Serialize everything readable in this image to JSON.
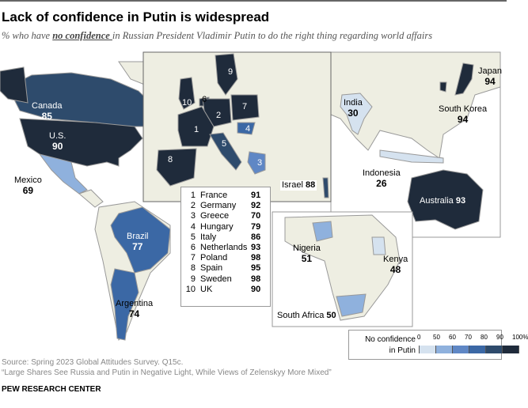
{
  "title": "Lack of confidence in Putin is widespread",
  "subtitle": {
    "prefix": "% who have ",
    "emphasis": "no confidence ",
    "suffix": "in Russian President Vladimir Putin to do the right thing regarding world affairs"
  },
  "colors": {
    "land": "#eeeee2",
    "border": "#999",
    "bin_0_50": "#d5e2ef",
    "bin_50_60": "#8fb1dd",
    "bin_60_70": "#5f87c5",
    "bin_70_80": "#3b68a5",
    "bin_80_90": "#2e4b6c",
    "bin_90_100": "#1f2b3b"
  },
  "countries": {
    "canada": {
      "name": "Canada",
      "value": "85"
    },
    "us": {
      "name": "U.S.",
      "value": "90"
    },
    "mexico": {
      "name": "Mexico",
      "value": "69"
    },
    "brazil": {
      "name": "Brazil",
      "value": "77"
    },
    "argentina": {
      "name": "Argentina",
      "value": "74"
    },
    "israel": {
      "name": "Israel",
      "value": "88"
    },
    "india": {
      "name": "India",
      "value": "30"
    },
    "japan": {
      "name": "Japan",
      "value": "94"
    },
    "south_korea": {
      "name": "South Korea",
      "value": "94"
    },
    "indonesia": {
      "name": "Indonesia",
      "value": "26"
    },
    "australia": {
      "name": "Australia",
      "value": "93"
    },
    "nigeria": {
      "name": "Nigeria",
      "value": "51"
    },
    "kenya": {
      "name": "Kenya",
      "value": "48"
    },
    "south_africa": {
      "name": "South Africa",
      "value": "50"
    }
  },
  "europe_list": [
    {
      "i": "1",
      "name": "France",
      "value": "91"
    },
    {
      "i": "2",
      "name": "Germany",
      "value": "92"
    },
    {
      "i": "3",
      "name": "Greece",
      "value": "70"
    },
    {
      "i": "4",
      "name": "Hungary",
      "value": "79"
    },
    {
      "i": "5",
      "name": "Italy",
      "value": "86"
    },
    {
      "i": "6",
      "name": "Netherlands",
      "value": "93"
    },
    {
      "i": "7",
      "name": "Poland",
      "value": "98"
    },
    {
      "i": "8",
      "name": "Spain",
      "value": "95"
    },
    {
      "i": "9",
      "name": "Sweden",
      "value": "98"
    },
    {
      "i": "10",
      "name": "UK",
      "value": "90"
    }
  ],
  "legend": {
    "title_line1": "No confidence",
    "title_line2": "in Putin",
    "ticks": [
      "0",
      "50",
      "60",
      "70",
      "80",
      "90",
      "100%"
    ]
  },
  "source": "Source: Spring 2023 Global Attitudes Survey. Q15c.",
  "report": "“Large Shares See Russia and Putin in Negative Light, While Views of Zelenskyy More Mixed”",
  "footer": "PEW RESEARCH CENTER"
}
